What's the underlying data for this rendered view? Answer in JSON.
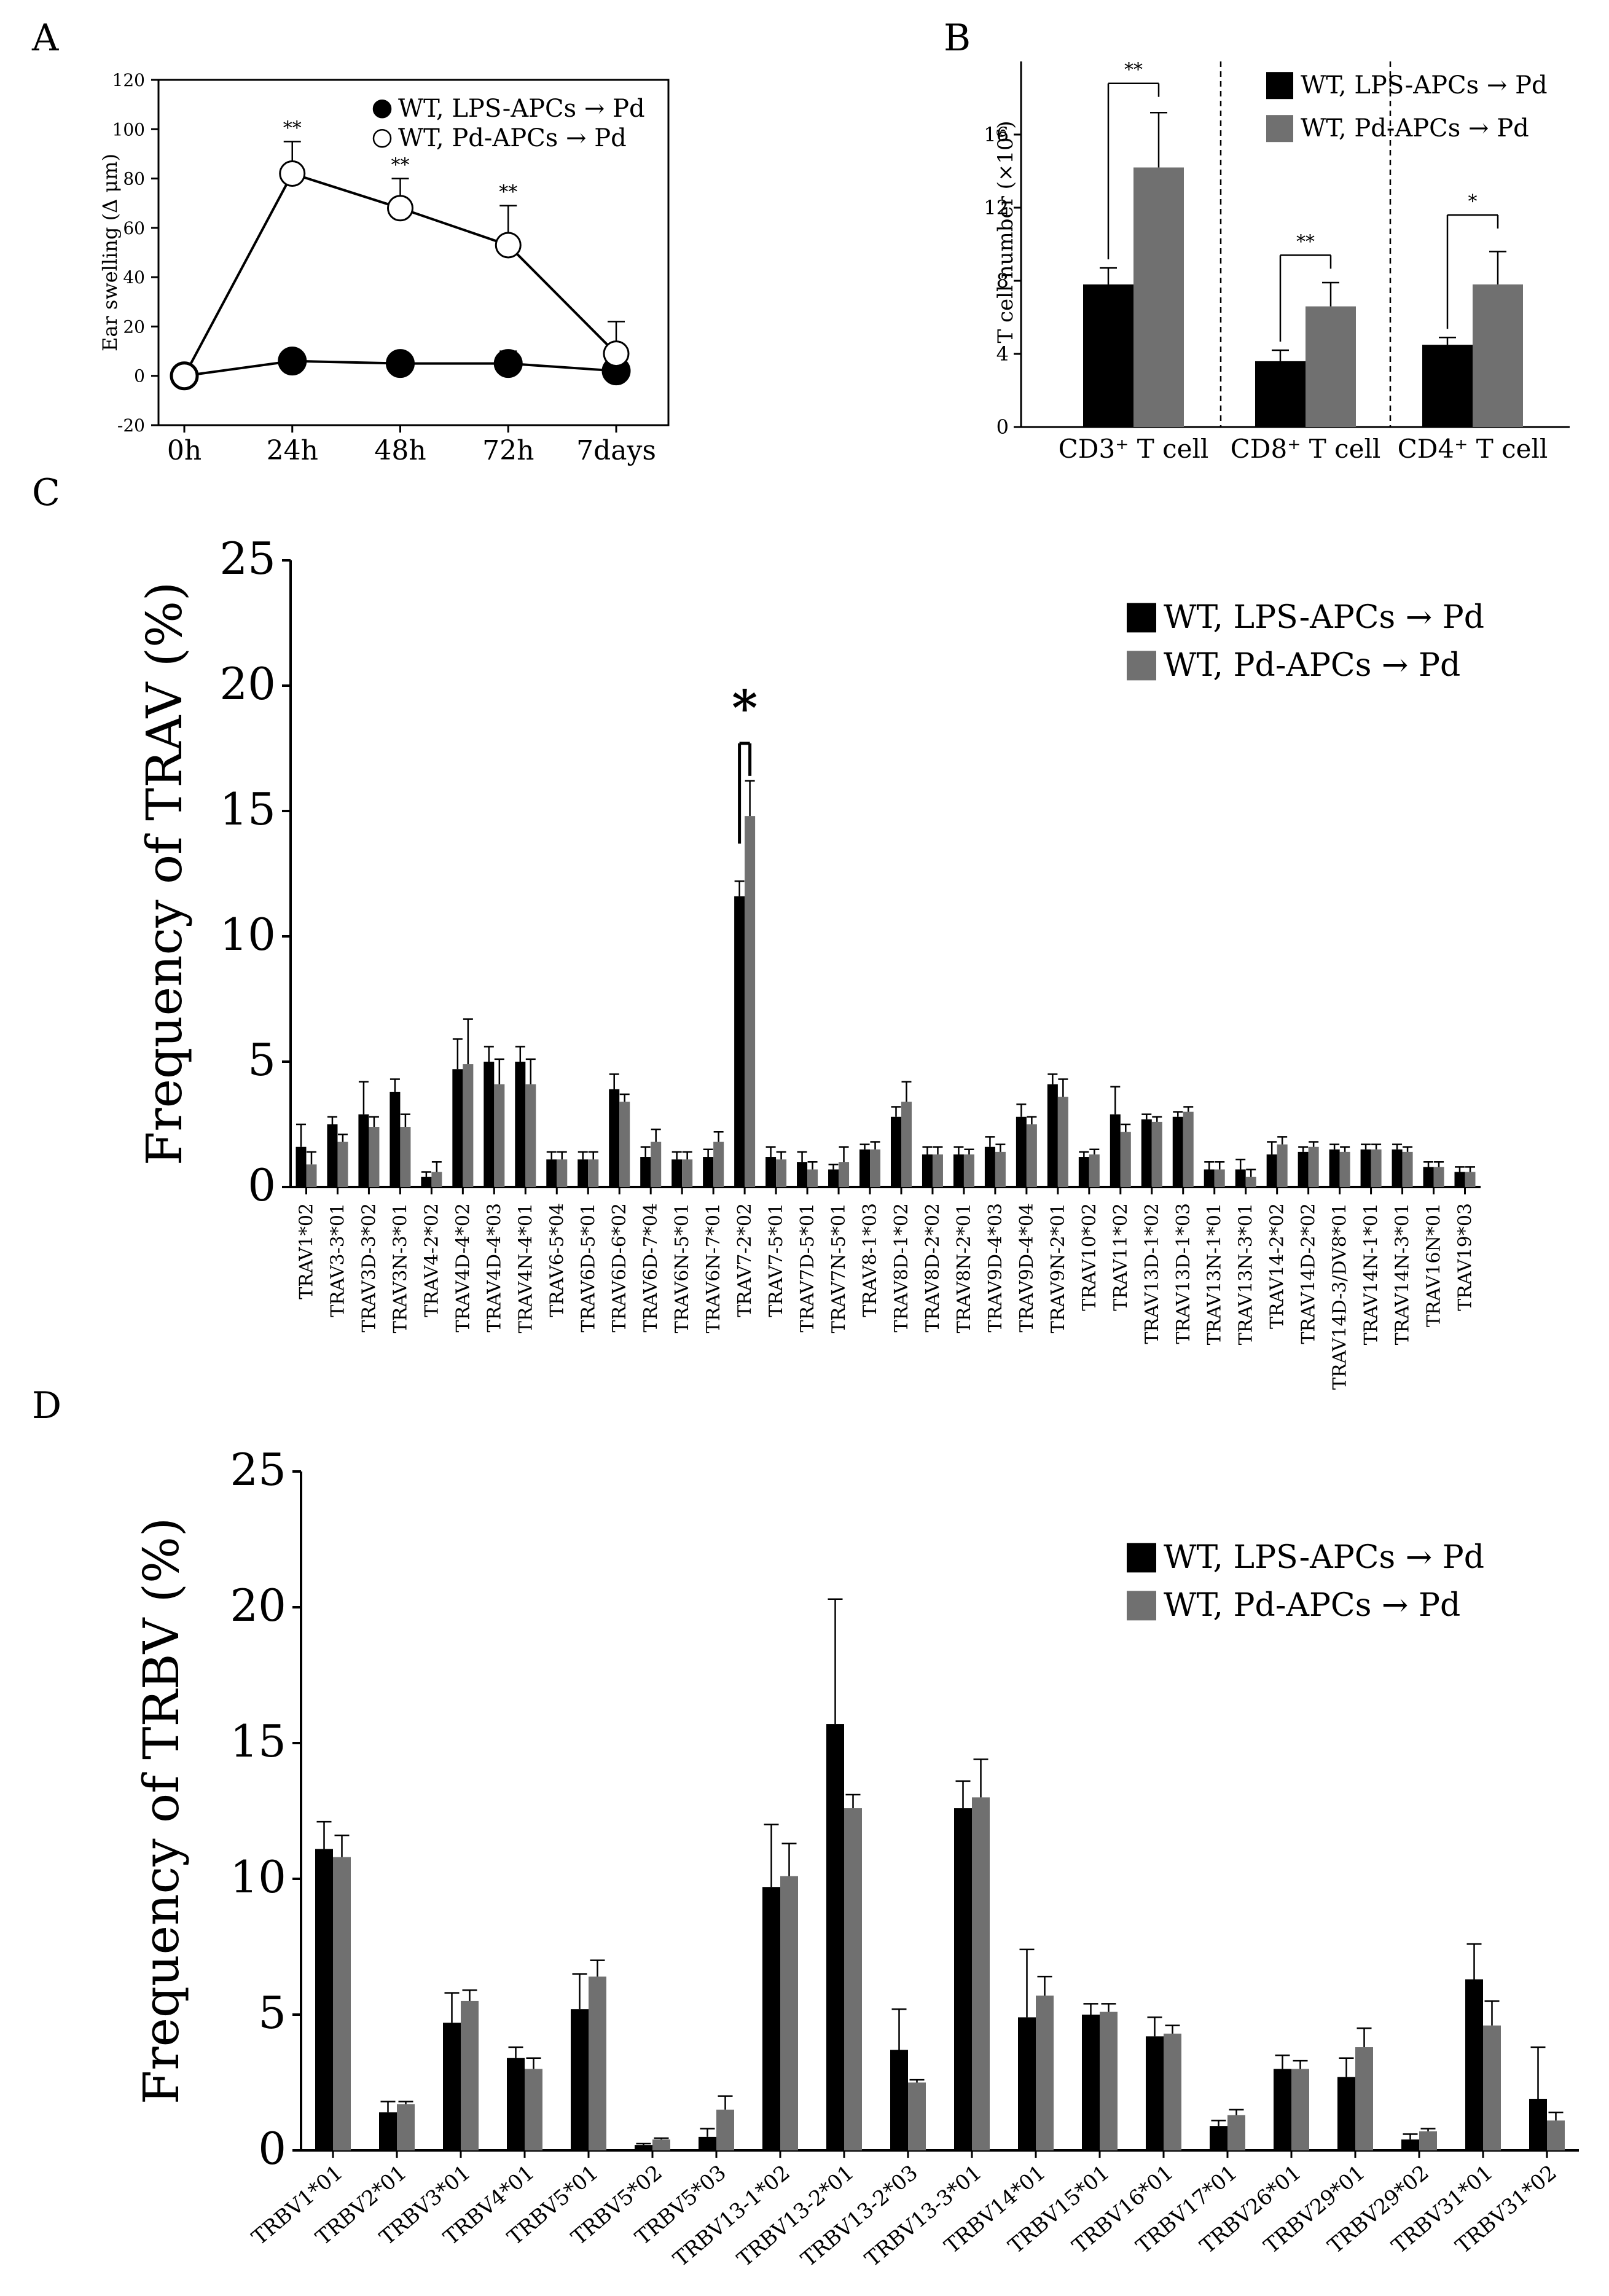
{
  "panel_labels": {
    "a": "A",
    "b": "B",
    "c": "C",
    "d": "D"
  },
  "series_colors": {
    "lps": "#000000",
    "pd": "#707070"
  },
  "chart_data": [
    {
      "id": "A",
      "type": "line",
      "title": "",
      "xlabel": "",
      "ylabel": "Ear swelling (Δ μm)",
      "categories": [
        "0h",
        "24h",
        "48h",
        "72h",
        "7days"
      ],
      "ylim": [
        -20,
        120
      ],
      "yticks": [
        -20,
        0,
        20,
        40,
        60,
        80,
        100,
        120
      ],
      "series": [
        {
          "name": "WT, LPS-APCs → Pd",
          "marker": "filled",
          "values": [
            0,
            6,
            5,
            5,
            2
          ],
          "errors": [
            2,
            2,
            2,
            5,
            7
          ]
        },
        {
          "name": "WT, Pd-APCs → Pd",
          "marker": "open",
          "values": [
            0,
            82,
            68,
            53,
            9
          ],
          "errors": [
            2,
            13,
            12,
            16,
            13
          ]
        }
      ],
      "annotations": [
        {
          "category": "24h",
          "text": "**"
        },
        {
          "category": "48h",
          "text": "**"
        },
        {
          "category": "72h",
          "text": "**"
        }
      ],
      "legend": "top-right"
    },
    {
      "id": "B",
      "type": "bar",
      "title": "",
      "xlabel": "",
      "ylabel": "T cell number (×10⁶)",
      "categories": [
        "CD3⁺ T cell",
        "CD8⁺ T cell",
        "CD4⁺ T cell"
      ],
      "ylim": [
        0,
        20
      ],
      "yticks": [
        0,
        4,
        8,
        12,
        16
      ],
      "series": [
        {
          "name": "WT, LPS-APCs → Pd",
          "values": [
            7.8,
            3.6,
            4.5
          ],
          "errors": [
            0.9,
            0.6,
            0.4
          ]
        },
        {
          "name": "WT, Pd-APCs → Pd",
          "values": [
            14.2,
            6.6,
            7.8
          ],
          "errors": [
            3.0,
            1.3,
            1.8
          ]
        }
      ],
      "annotations": [
        "**",
        "**",
        "*"
      ],
      "legend": "top-right"
    },
    {
      "id": "C",
      "type": "bar",
      "title": "",
      "xlabel": "",
      "ylabel": "Frequency of TRAV (%)",
      "categories": [
        "TRAV1*02",
        "TRAV3-3*01",
        "TRAV3D-3*02",
        "TRAV3N-3*01",
        "TRAV4-2*02",
        "TRAV4D-4*02",
        "TRAV4D-4*03",
        "TRAV4N-4*01",
        "TRAV6-5*04",
        "TRAV6D-5*01",
        "TRAV6D-6*02",
        "TRAV6D-7*04",
        "TRAV6N-5*01",
        "TRAV6N-7*01",
        "TRAV7-2*02",
        "TRAV7-5*01",
        "TRAV7D-5*01",
        "TRAV7N-5*01",
        "TRAV8-1*03",
        "TRAV8D-1*02",
        "TRAV8D-2*02",
        "TRAV8N-2*01",
        "TRAV9D-4*03",
        "TRAV9D-4*04",
        "TRAV9N-2*01",
        "TRAV10*02",
        "TRAV11*02",
        "TRAV13D-1*02",
        "TRAV13D-1*03",
        "TRAV13N-1*01",
        "TRAV13N-3*01",
        "TRAV14-2*02",
        "TRAV14D-2*02",
        "TRAV14D-3/DV8*01",
        "TRAV14N-1*01",
        "TRAV14N-3*01",
        "TRAV16N*01",
        "TRAV19*03"
      ],
      "ylim": [
        0,
        25
      ],
      "yticks": [
        0,
        5,
        10,
        15,
        20,
        25
      ],
      "series": [
        {
          "name": "WT, LPS-APCs → Pd",
          "values": [
            1.6,
            2.5,
            2.9,
            3.8,
            0.4,
            4.7,
            5.0,
            5.0,
            1.1,
            1.1,
            3.9,
            1.2,
            1.1,
            1.2,
            11.6,
            1.2,
            1.0,
            0.7,
            1.5,
            2.8,
            1.3,
            1.3,
            1.6,
            2.8,
            4.1,
            1.2,
            2.9,
            2.7,
            2.8,
            0.7,
            0.7,
            1.3,
            1.4,
            1.5,
            1.5,
            1.5,
            0.8,
            0.6
          ],
          "errors": [
            0.9,
            0.3,
            1.3,
            0.5,
            0.2,
            1.2,
            0.6,
            0.6,
            0.3,
            0.3,
            0.6,
            0.4,
            0.3,
            0.3,
            0.6,
            0.4,
            0.4,
            0.2,
            0.2,
            0.4,
            0.3,
            0.3,
            0.4,
            0.5,
            0.4,
            0.2,
            1.1,
            0.2,
            0.2,
            0.3,
            0.4,
            0.5,
            0.2,
            0.2,
            0.2,
            0.2,
            0.2,
            0.2
          ]
        },
        {
          "name": "WT, Pd-APCs → Pd",
          "values": [
            0.9,
            1.8,
            2.4,
            2.4,
            0.6,
            4.9,
            4.1,
            4.1,
            1.1,
            1.1,
            3.4,
            1.8,
            1.1,
            1.8,
            14.8,
            1.1,
            0.7,
            1.0,
            1.5,
            3.4,
            1.3,
            1.3,
            1.4,
            2.5,
            3.6,
            1.3,
            2.2,
            2.6,
            3.0,
            0.7,
            0.4,
            1.7,
            1.6,
            1.4,
            1.5,
            1.4,
            0.8,
            0.6
          ],
          "errors": [
            0.5,
            0.3,
            0.4,
            0.5,
            0.4,
            1.8,
            1.0,
            1.0,
            0.3,
            0.3,
            0.3,
            0.5,
            0.3,
            0.4,
            1.4,
            0.3,
            0.3,
            0.6,
            0.3,
            0.8,
            0.3,
            0.2,
            0.3,
            0.3,
            0.7,
            0.2,
            0.3,
            0.2,
            0.2,
            0.3,
            0.3,
            0.3,
            0.2,
            0.2,
            0.2,
            0.2,
            0.2,
            0.2
          ]
        }
      ],
      "annotations": [
        {
          "category": "TRAV7-2*02",
          "text": "*"
        }
      ],
      "legend": "top-right"
    },
    {
      "id": "D",
      "type": "bar",
      "title": "",
      "xlabel": "",
      "ylabel": "Frequency of TRBV (%)",
      "categories": [
        "TRBV1*01",
        "TRBV2*01",
        "TRBV3*01",
        "TRBV4*01",
        "TRBV5*01",
        "TRBV5*02",
        "TRBV5*03",
        "TRBV13-1*02",
        "TRBV13-2*01",
        "TRBV13-2*03",
        "TRBV13-3*01",
        "TRBV14*01",
        "TRBV15*01",
        "TRBV16*01",
        "TRBV17*01",
        "TRBV26*01",
        "TRBV29*01",
        "TRBV29*02",
        "TRBV31*01",
        "TRBV31*02"
      ],
      "ylim": [
        0,
        25
      ],
      "yticks": [
        0,
        5,
        10,
        15,
        20,
        25
      ],
      "series": [
        {
          "name": "WT, LPS-APCs → Pd",
          "values": [
            11.1,
            1.4,
            4.7,
            3.4,
            5.2,
            0.2,
            0.5,
            9.7,
            15.7,
            3.7,
            12.6,
            4.9,
            5.0,
            4.2,
            0.9,
            3.0,
            2.7,
            0.4,
            6.3,
            1.9
          ],
          "errors": [
            1.0,
            0.4,
            1.1,
            0.4,
            1.3,
            0.05,
            0.3,
            2.3,
            4.6,
            1.5,
            1.0,
            2.5,
            0.4,
            0.7,
            0.2,
            0.5,
            0.7,
            0.2,
            1.3,
            1.9
          ]
        },
        {
          "name": "WT, Pd-APCs → Pd",
          "values": [
            10.8,
            1.7,
            5.5,
            3.0,
            6.4,
            0.4,
            1.5,
            10.1,
            12.6,
            2.5,
            13.0,
            5.7,
            5.1,
            4.3,
            1.3,
            3.0,
            3.8,
            0.7,
            4.6,
            1.1
          ],
          "errors": [
            0.8,
            0.1,
            0.4,
            0.4,
            0.6,
            0.05,
            0.5,
            1.2,
            0.5,
            0.1,
            1.4,
            0.7,
            0.3,
            0.3,
            0.2,
            0.3,
            0.7,
            0.1,
            0.9,
            0.3
          ]
        }
      ],
      "annotations": [],
      "legend": "top-right"
    }
  ]
}
